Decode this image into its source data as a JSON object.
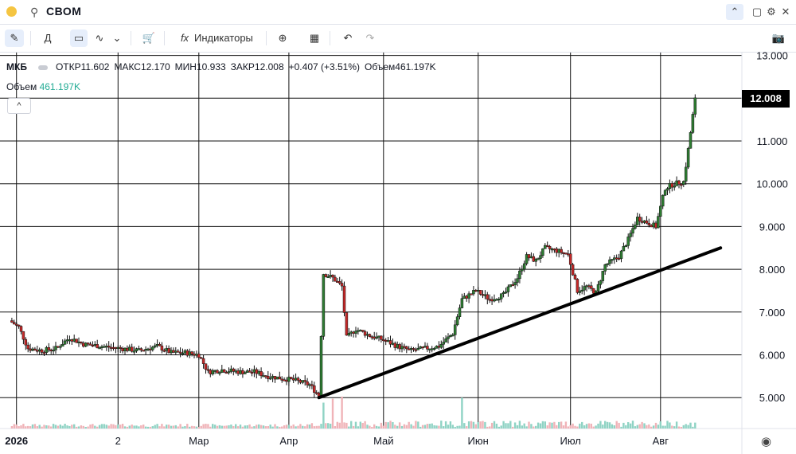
{
  "window": {
    "symbol_search": "СВОМ",
    "icons": [
      "search-icon",
      "chevron-up-icon",
      "maximize-icon",
      "settings-gear-icon",
      "close-icon"
    ]
  },
  "toolbar": {
    "draw_label": "",
    "interval_label": "Д",
    "indicators_label": "Индикаторы",
    "icons": [
      "pencil-icon",
      "candles-icon",
      "area-chart-icon",
      "chevron-down-icon",
      "basket-icon",
      "fx-icon",
      "plus-circle-icon",
      "grid-icon",
      "undo-icon",
      "redo-icon",
      "camera-icon"
    ]
  },
  "legend": {
    "symbol": "МКБ",
    "open": "ОТКР11.602",
    "high": "МАКС12.170",
    "low": "МИН10.933",
    "close": "ЗАКР12.008",
    "change": "+0.407 (+3.51%)",
    "volume": "Объем461.197K",
    "volume_label": "Объем",
    "volume_value": "461.197K",
    "collapse_symbol": "^"
  },
  "price_tag": "12.008",
  "colors": {
    "up": "#2e7d32",
    "down": "#c62828",
    "vol_up": "#8fd3c4",
    "vol_down": "#f0b3b8",
    "trend": "#000000",
    "grid": "#111111"
  },
  "chart_data": {
    "type": "candlestick",
    "y_axis": {
      "ticks": [
        "5.000",
        "6.000",
        "7.000",
        "8.000",
        "9.000",
        "10.000",
        "11.000",
        "12.000",
        "13.000"
      ],
      "ylim": [
        4.5,
        13.1
      ]
    },
    "x_axis": {
      "ticks": [
        "2026",
        "2",
        "Мар",
        "Апр",
        "Май",
        "Июн",
        "Июл",
        "Авг"
      ]
    },
    "last_price": 12.008,
    "series": [
      {
        "day": 0,
        "close": 6.8
      },
      {
        "day": 4,
        "close": 6.65
      },
      {
        "day": 8,
        "close": 6.15
      },
      {
        "day": 14,
        "close": 6.1
      },
      {
        "day": 20,
        "close": 6.15
      },
      {
        "day": 26,
        "close": 6.4
      },
      {
        "day": 32,
        "close": 6.25
      },
      {
        "day": 40,
        "close": 6.2
      },
      {
        "day": 48,
        "close": 6.15
      },
      {
        "day": 56,
        "close": 6.1
      },
      {
        "day": 64,
        "close": 6.2
      },
      {
        "day": 70,
        "close": 6.05
      },
      {
        "day": 76,
        "close": 6.05
      },
      {
        "day": 82,
        "close": 6.0
      },
      {
        "day": 86,
        "close": 5.6
      },
      {
        "day": 92,
        "close": 5.65
      },
      {
        "day": 100,
        "close": 5.6
      },
      {
        "day": 106,
        "close": 5.6
      },
      {
        "day": 112,
        "close": 5.5
      },
      {
        "day": 118,
        "close": 5.45
      },
      {
        "day": 124,
        "close": 5.4
      },
      {
        "day": 130,
        "close": 5.3
      },
      {
        "day": 134,
        "close": 5.05
      },
      {
        "day": 136,
        "close": 7.9
      },
      {
        "day": 140,
        "close": 7.8
      },
      {
        "day": 144,
        "close": 7.6
      },
      {
        "day": 146,
        "close": 6.4
      },
      {
        "day": 150,
        "close": 6.6
      },
      {
        "day": 156,
        "close": 6.45
      },
      {
        "day": 162,
        "close": 6.35
      },
      {
        "day": 168,
        "close": 6.2
      },
      {
        "day": 174,
        "close": 6.1
      },
      {
        "day": 180,
        "close": 6.15
      },
      {
        "day": 186,
        "close": 6.2
      },
      {
        "day": 192,
        "close": 6.5
      },
      {
        "day": 196,
        "close": 7.3
      },
      {
        "day": 202,
        "close": 7.5
      },
      {
        "day": 208,
        "close": 7.3
      },
      {
        "day": 214,
        "close": 7.4
      },
      {
        "day": 220,
        "close": 7.8
      },
      {
        "day": 224,
        "close": 8.3
      },
      {
        "day": 228,
        "close": 8.2
      },
      {
        "day": 232,
        "close": 8.5
      },
      {
        "day": 236,
        "close": 8.45
      },
      {
        "day": 242,
        "close": 8.35
      },
      {
        "day": 246,
        "close": 7.5
      },
      {
        "day": 250,
        "close": 7.6
      },
      {
        "day": 254,
        "close": 7.45
      },
      {
        "day": 258,
        "close": 8.1
      },
      {
        "day": 264,
        "close": 8.3
      },
      {
        "day": 268,
        "close": 8.7
      },
      {
        "day": 272,
        "close": 9.2
      },
      {
        "day": 276,
        "close": 9.1
      },
      {
        "day": 280,
        "close": 9.0
      },
      {
        "day": 284,
        "close": 9.9
      },
      {
        "day": 288,
        "close": 10.0
      },
      {
        "day": 292,
        "close": 10.05
      },
      {
        "day": 294,
        "close": 10.8
      },
      {
        "day": 296,
        "close": 11.6
      },
      {
        "day": 297,
        "close": 12.008
      }
    ],
    "trendline": [
      {
        "day": 134,
        "value": 5.0
      },
      {
        "day": 308,
        "value": 8.5
      }
    ],
    "volume_spike_days": [
      136,
      140,
      144,
      196
    ]
  }
}
